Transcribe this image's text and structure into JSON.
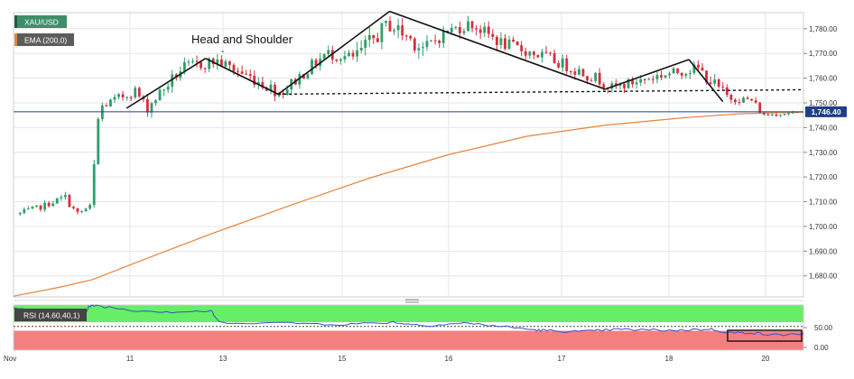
{
  "symbol_tag": "XAU/USD",
  "ema_tag": "EMA (200,0)",
  "rsi_tag": "RSI (14,60,40,1)",
  "annotation": "Head and Shoulder",
  "annotation_tick": "-",
  "last_price_label": "1,746.40",
  "colors": {
    "up_candle": "#2e9e6b",
    "down_candle": "#d62f3b",
    "ema_line": "#e8833a",
    "price_line": "#1f3f8a",
    "rsi_line": "#3a4fc8",
    "rsi_overbought_zone": "#66ee66",
    "rsi_oversold_zone": "#f47f7f",
    "symbol_tag_bg": "#3d8f6a",
    "ema_tag_bg": "#e8833a",
    "grid": "#e6e6e6",
    "pattern_line": "#111111"
  },
  "chart_data": [
    {
      "type": "candlestick",
      "title": "XAU/USD",
      "x_tick_labels": [
        "Nov",
        "11",
        "13",
        "15",
        "16",
        "17",
        "18",
        "20"
      ],
      "y_tick_labels": [
        "1,680.00",
        "1,690.00",
        "1,700.00",
        "1,710.00",
        "1,720.00",
        "1,730.00",
        "1,740.00",
        "1,750.00",
        "1,760.00",
        "1,770.00",
        "1,780.00"
      ],
      "ylim": [
        1671.5,
        1786.5
      ],
      "grid": true,
      "last_price": 1746.4,
      "series": [
        {
          "name": "EMA (200,0)",
          "type": "line",
          "x": [
            0,
            0.06,
            0.1,
            0.16,
            0.25,
            0.35,
            0.45,
            0.55,
            0.65,
            0.75,
            0.85,
            0.92,
            0.97,
            1.0
          ],
          "values": [
            1671.8,
            1675.5,
            1678.5,
            1686.0,
            1697.0,
            1708.5,
            1719.5,
            1729.0,
            1736.5,
            1741.0,
            1744.0,
            1745.6,
            1746.0,
            1746.2
          ]
        }
      ],
      "candle_segments": [
        {
          "from": 0.0,
          "to": 0.03,
          "start": 1705.0,
          "end": 1708.0,
          "vol": 1.2
        },
        {
          "from": 0.03,
          "to": 0.06,
          "start": 1708.0,
          "end": 1712.0,
          "vol": 1.2
        },
        {
          "from": 0.06,
          "to": 0.075,
          "start": 1712.0,
          "end": 1705.0,
          "vol": 1.5
        },
        {
          "from": 0.075,
          "to": 0.093,
          "start": 1705.0,
          "end": 1708.0,
          "vol": 1.2
        },
        {
          "from": 0.093,
          "to": 0.104,
          "start": 1708.0,
          "end": 1748.0,
          "vol": 3.0
        },
        {
          "from": 0.104,
          "to": 0.15,
          "start": 1748.0,
          "end": 1755.0,
          "vol": 2.0
        },
        {
          "from": 0.15,
          "to": 0.165,
          "start": 1755.0,
          "end": 1748.0,
          "vol": 2.0
        },
        {
          "from": 0.165,
          "to": 0.21,
          "start": 1748.0,
          "end": 1764.0,
          "vol": 2.5
        },
        {
          "from": 0.21,
          "to": 0.254,
          "start": 1764.0,
          "end": 1767.0,
          "vol": 2.5
        },
        {
          "from": 0.254,
          "to": 0.3,
          "start": 1767.0,
          "end": 1760.0,
          "vol": 2.5
        },
        {
          "from": 0.3,
          "to": 0.336,
          "start": 1760.0,
          "end": 1754.0,
          "vol": 2.5
        },
        {
          "from": 0.336,
          "to": 0.395,
          "start": 1754.0,
          "end": 1770.0,
          "vol": 2.5
        },
        {
          "from": 0.395,
          "to": 0.43,
          "start": 1770.0,
          "end": 1768.0,
          "vol": 2.5
        },
        {
          "from": 0.43,
          "to": 0.475,
          "start": 1768.0,
          "end": 1782.0,
          "vol": 3.5
        },
        {
          "from": 0.475,
          "to": 0.52,
          "start": 1782.0,
          "end": 1772.0,
          "vol": 3.5
        },
        {
          "from": 0.52,
          "to": 0.55,
          "start": 1772.0,
          "end": 1779.0,
          "vol": 2.5
        },
        {
          "from": 0.55,
          "to": 0.58,
          "start": 1779.0,
          "end": 1782.0,
          "vol": 2.5
        },
        {
          "from": 0.58,
          "to": 0.62,
          "start": 1782.0,
          "end": 1774.0,
          "vol": 2.5
        },
        {
          "from": 0.62,
          "to": 0.68,
          "start": 1774.0,
          "end": 1768.0,
          "vol": 2.5
        },
        {
          "from": 0.68,
          "to": 0.74,
          "start": 1768.0,
          "end": 1760.0,
          "vol": 2.5
        },
        {
          "from": 0.74,
          "to": 0.76,
          "start": 1760.0,
          "end": 1756.0,
          "vol": 2.0
        },
        {
          "from": 0.76,
          "to": 0.82,
          "start": 1756.0,
          "end": 1761.0,
          "vol": 2.0
        },
        {
          "from": 0.82,
          "to": 0.87,
          "start": 1761.0,
          "end": 1764.0,
          "vol": 2.0
        },
        {
          "from": 0.87,
          "to": 0.91,
          "start": 1764.0,
          "end": 1752.0,
          "vol": 2.5
        },
        {
          "from": 0.91,
          "to": 0.94,
          "start": 1752.0,
          "end": 1751.0,
          "vol": 1.5
        },
        {
          "from": 0.94,
          "to": 0.955,
          "start": 1751.0,
          "end": 1745.0,
          "vol": 1.5
        },
        {
          "from": 0.955,
          "to": 1.0,
          "start": 1745.0,
          "end": 1746.4,
          "vol": 0.8
        }
      ],
      "pattern_lines": [
        {
          "from": [
            0.143,
            1747.8
          ],
          "to": [
            0.243,
            1768.0
          ]
        },
        {
          "from": [
            0.243,
            1768.0
          ],
          "to": [
            0.335,
            1753.5
          ]
        },
        {
          "from": [
            0.335,
            1753.5
          ],
          "to": [
            0.476,
            1787.0
          ]
        },
        {
          "from": [
            0.476,
            1787.0
          ],
          "to": [
            0.749,
            1755.5
          ]
        },
        {
          "from": [
            0.749,
            1755.5
          ],
          "to": [
            0.855,
            1767.5
          ]
        },
        {
          "from": [
            0.855,
            1767.5
          ],
          "to": [
            0.898,
            1750.5
          ]
        }
      ],
      "neckline": {
        "from": [
          0.335,
          1753.5
        ],
        "to": [
          1.0,
          1755.3
        ]
      }
    },
    {
      "type": "line",
      "title": "RSI (14,60,40,1)",
      "y_tick_labels": [
        "50.00",
        "0.00"
      ],
      "ylim": [
        -5,
        100
      ],
      "zones": [
        {
          "from": 60,
          "to": 100,
          "color": "overbought"
        },
        {
          "from": 0,
          "to": 40,
          "color": "oversold"
        }
      ],
      "series": [
        {
          "name": "RSI",
          "type": "line",
          "x": [
            0,
            0.05,
            0.09,
            0.095,
            0.104,
            0.15,
            0.2,
            0.25,
            0.26,
            0.35,
            0.42,
            0.48,
            0.52,
            0.57,
            0.62,
            0.66,
            0.68,
            0.72,
            0.76,
            0.8,
            0.84,
            0.88,
            0.91,
            0.93,
            0.96,
            1.0
          ],
          "values": [
            92,
            85,
            78,
            96,
            99,
            88,
            84,
            86,
            60,
            58,
            55,
            60,
            52,
            58,
            50,
            42,
            40,
            38,
            43,
            42,
            41,
            44,
            35,
            36,
            30,
            33
          ]
        }
      ]
    }
  ]
}
